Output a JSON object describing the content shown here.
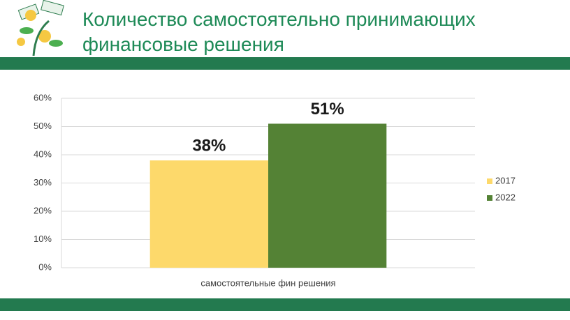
{
  "header": {
    "title": "Количество самостоятельно принимающих финансовые решения"
  },
  "chart_data": {
    "type": "bar",
    "categories": [
      "самостоятельные фин решения"
    ],
    "series": [
      {
        "name": "2017",
        "color": "#fdd96b",
        "values": [
          38
        ],
        "value_labels": [
          "38%"
        ]
      },
      {
        "name": "2022",
        "color": "#548235",
        "values": [
          51
        ],
        "value_labels": [
          "51%"
        ]
      }
    ],
    "ylim": [
      0,
      60
    ],
    "yticks": [
      {
        "value": 0,
        "label": "0%"
      },
      {
        "value": 10,
        "label": "10%"
      },
      {
        "value": 20,
        "label": "20%"
      },
      {
        "value": 30,
        "label": "30%"
      },
      {
        "value": 40,
        "label": "40%"
      },
      {
        "value": 50,
        "label": "50%"
      },
      {
        "value": 60,
        "label": "60%"
      }
    ],
    "grid": true,
    "legend": "right"
  }
}
